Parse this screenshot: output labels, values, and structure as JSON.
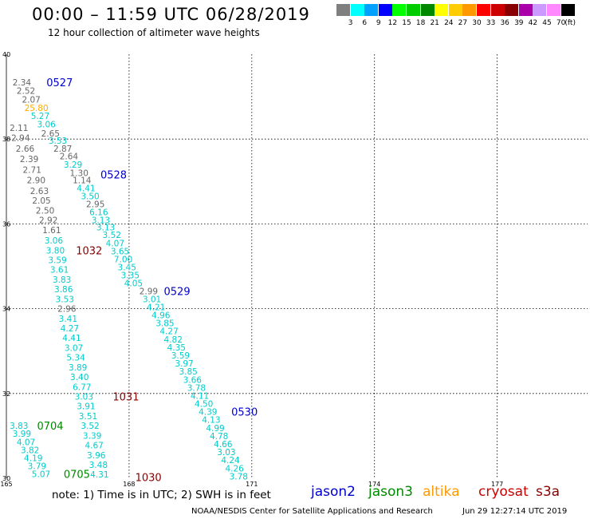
{
  "header": {
    "title": "00:00 – 11:59 UTC 06/28/2019",
    "subtitle": "12 hour collection of altimeter wave heights"
  },
  "color_scale": {
    "unit": "(ft)",
    "bins": [
      {
        "label": "3",
        "color": "#7f7f7f"
      },
      {
        "label": "6",
        "color": "#00ffff"
      },
      {
        "label": "9",
        "color": "#00a0ff"
      },
      {
        "label": "12",
        "color": "#0000ff"
      },
      {
        "label": "15",
        "color": "#00ff00"
      },
      {
        "label": "18",
        "color": "#00cc00"
      },
      {
        "label": "21",
        "color": "#008800"
      },
      {
        "label": "24",
        "color": "#ffff00"
      },
      {
        "label": "27",
        "color": "#ffcc00"
      },
      {
        "label": "30",
        "color": "#ff9900"
      },
      {
        "label": "33",
        "color": "#ff0000"
      },
      {
        "label": "36",
        "color": "#cc0000"
      },
      {
        "label": "39",
        "color": "#880000"
      },
      {
        "label": "42",
        "color": "#aa00aa"
      },
      {
        "label": "45",
        "color": "#cc99ff"
      },
      {
        "label": "70",
        "color": "#ff88ff"
      },
      {
        "label": "",
        "color": "#000000"
      }
    ]
  },
  "map": {
    "lat_ticks": [
      "40",
      "38",
      "36",
      "34",
      "32",
      "30"
    ],
    "lon_ticks": [
      "165",
      "168",
      "171",
      "174",
      "177"
    ],
    "colors": {
      "gray": "#666666",
      "cyan": "#00cccc",
      "orange": "#ffaa00",
      "blue": "#0000cc",
      "green": "#008800",
      "darkred": "#880000"
    },
    "wave_labels": [
      {
        "v": "2.34",
        "c": "gray",
        "lat": 39.34,
        "lon": 165.15
      },
      {
        "v": "2.52",
        "c": "gray",
        "lat": 39.14,
        "lon": 165.25
      },
      {
        "v": "2.07",
        "c": "gray",
        "lat": 38.94,
        "lon": 165.38
      },
      {
        "v": "25.80",
        "c": "orange",
        "lat": 38.74,
        "lon": 165.44
      },
      {
        "v": "5.27",
        "c": "cyan",
        "lat": 38.55,
        "lon": 165.6
      },
      {
        "v": "3.06",
        "c": "cyan",
        "lat": 38.35,
        "lon": 165.75
      },
      {
        "v": "2.65",
        "c": "gray",
        "lat": 38.14,
        "lon": 165.85
      },
      {
        "v": "2.11",
        "c": "gray",
        "lat": 38.27,
        "lon": 165.08
      },
      {
        "v": "2.94",
        "c": "gray",
        "lat": 38.03,
        "lon": 165.12
      },
      {
        "v": "3.53",
        "c": "cyan",
        "lat": 37.97,
        "lon": 166.03
      },
      {
        "v": "2.66",
        "c": "gray",
        "lat": 37.78,
        "lon": 165.23
      },
      {
        "v": "2.87",
        "c": "gray",
        "lat": 37.78,
        "lon": 166.15
      },
      {
        "v": "2.39",
        "c": "gray",
        "lat": 37.53,
        "lon": 165.33
      },
      {
        "v": "2.64",
        "c": "gray",
        "lat": 37.6,
        "lon": 166.3
      },
      {
        "v": "2.71",
        "c": "gray",
        "lat": 37.28,
        "lon": 165.4
      },
      {
        "v": "3.29",
        "c": "cyan",
        "lat": 37.4,
        "lon": 166.4
      },
      {
        "v": "1.30",
        "c": "gray",
        "lat": 37.2,
        "lon": 166.55
      },
      {
        "v": "2.90",
        "c": "gray",
        "lat": 37.03,
        "lon": 165.5
      },
      {
        "v": "1.14",
        "c": "gray",
        "lat": 37.03,
        "lon": 166.62
      },
      {
        "v": "2.63",
        "c": "gray",
        "lat": 36.78,
        "lon": 165.58
      },
      {
        "v": "4.41",
        "c": "cyan",
        "lat": 36.85,
        "lon": 166.72
      },
      {
        "v": "2.05",
        "c": "gray",
        "lat": 36.55,
        "lon": 165.63
      },
      {
        "v": "3.50",
        "c": "cyan",
        "lat": 36.66,
        "lon": 166.82
      },
      {
        "v": "2.50",
        "c": "gray",
        "lat": 36.32,
        "lon": 165.72
      },
      {
        "v": "2.95",
        "c": "gray",
        "lat": 36.47,
        "lon": 166.95
      },
      {
        "v": "6.16",
        "c": "cyan",
        "lat": 36.28,
        "lon": 167.03
      },
      {
        "v": "2.92",
        "c": "gray",
        "lat": 36.09,
        "lon": 165.8
      },
      {
        "v": "3.13",
        "c": "cyan",
        "lat": 36.09,
        "lon": 167.08
      },
      {
        "v": "1.61",
        "c": "gray",
        "lat": 35.86,
        "lon": 165.88
      },
      {
        "v": "3.13",
        "c": "cyan",
        "lat": 35.92,
        "lon": 167.2
      },
      {
        "v": "3.52",
        "c": "cyan",
        "lat": 35.74,
        "lon": 167.35
      },
      {
        "v": "3.06",
        "c": "cyan",
        "lat": 35.61,
        "lon": 165.93
      },
      {
        "v": "4.07",
        "c": "cyan",
        "lat": 35.55,
        "lon": 167.43
      },
      {
        "v": "3.80",
        "c": "cyan",
        "lat": 35.38,
        "lon": 165.97
      },
      {
        "v": "3.65",
        "c": "cyan",
        "lat": 35.36,
        "lon": 167.55
      },
      {
        "v": "3.59",
        "c": "cyan",
        "lat": 35.15,
        "lon": 166.02
      },
      {
        "v": "7.00",
        "c": "cyan",
        "lat": 35.17,
        "lon": 167.63
      },
      {
        "v": "3.45",
        "c": "cyan",
        "lat": 34.98,
        "lon": 167.72
      },
      {
        "v": "3.61",
        "c": "cyan",
        "lat": 34.92,
        "lon": 166.07
      },
      {
        "v": "3.35",
        "c": "cyan",
        "lat": 34.79,
        "lon": 167.8
      },
      {
        "v": "3.83",
        "c": "cyan",
        "lat": 34.69,
        "lon": 166.13
      },
      {
        "v": "4.05",
        "c": "cyan",
        "lat": 34.6,
        "lon": 167.88
      },
      {
        "v": "3.86",
        "c": "cyan",
        "lat": 34.46,
        "lon": 166.17
      },
      {
        "v": "2.99",
        "c": "gray",
        "lat": 34.42,
        "lon": 168.25
      },
      {
        "v": "3.53",
        "c": "cyan",
        "lat": 34.23,
        "lon": 166.2
      },
      {
        "v": "3.01",
        "c": "cyan",
        "lat": 34.23,
        "lon": 168.33
      },
      {
        "v": "2.96",
        "c": "gray",
        "lat": 34.0,
        "lon": 166.25
      },
      {
        "v": "4.21",
        "c": "cyan",
        "lat": 34.04,
        "lon": 168.43
      },
      {
        "v": "4.96",
        "c": "cyan",
        "lat": 33.85,
        "lon": 168.55
      },
      {
        "v": "3.41",
        "c": "cyan",
        "lat": 33.77,
        "lon": 166.28
      },
      {
        "v": "3.85",
        "c": "cyan",
        "lat": 33.66,
        "lon": 168.65
      },
      {
        "v": "4.27",
        "c": "cyan",
        "lat": 33.54,
        "lon": 166.32
      },
      {
        "v": "4.27",
        "c": "cyan",
        "lat": 33.47,
        "lon": 168.75
      },
      {
        "v": "4.41",
        "c": "cyan",
        "lat": 33.31,
        "lon": 166.37
      },
      {
        "v": "4.82",
        "c": "cyan",
        "lat": 33.28,
        "lon": 168.85
      },
      {
        "v": "4.35",
        "c": "cyan",
        "lat": 33.09,
        "lon": 168.93
      },
      {
        "v": "3.07",
        "c": "cyan",
        "lat": 33.08,
        "lon": 166.42
      },
      {
        "v": "3.59",
        "c": "cyan",
        "lat": 32.9,
        "lon": 169.03
      },
      {
        "v": "5.34",
        "c": "cyan",
        "lat": 32.85,
        "lon": 166.47
      },
      {
        "v": "3.97",
        "c": "cyan",
        "lat": 32.71,
        "lon": 169.12
      },
      {
        "v": "3.89",
        "c": "cyan",
        "lat": 32.62,
        "lon": 166.52
      },
      {
        "v": "3.85",
        "c": "cyan",
        "lat": 32.52,
        "lon": 169.22
      },
      {
        "v": "3.40",
        "c": "cyan",
        "lat": 32.39,
        "lon": 166.56
      },
      {
        "v": "3.66",
        "c": "cyan",
        "lat": 32.33,
        "lon": 169.32
      },
      {
        "v": "6.77",
        "c": "cyan",
        "lat": 32.16,
        "lon": 166.62
      },
      {
        "v": "3.78",
        "c": "cyan",
        "lat": 32.14,
        "lon": 169.42
      },
      {
        "v": "4.11",
        "c": "cyan",
        "lat": 31.95,
        "lon": 169.5
      },
      {
        "v": "3.03",
        "c": "cyan",
        "lat": 31.93,
        "lon": 166.67
      },
      {
        "v": "4.50",
        "c": "cyan",
        "lat": 31.76,
        "lon": 169.6
      },
      {
        "v": "3.91",
        "c": "cyan",
        "lat": 31.7,
        "lon": 166.72
      },
      {
        "v": "4.39",
        "c": "cyan",
        "lat": 31.57,
        "lon": 169.7
      },
      {
        "v": "3.51",
        "c": "cyan",
        "lat": 31.47,
        "lon": 166.77
      },
      {
        "v": "4.13",
        "c": "cyan",
        "lat": 31.38,
        "lon": 169.78
      },
      {
        "v": "3.83",
        "c": "cyan",
        "lat": 31.24,
        "lon": 165.08
      },
      {
        "v": "3.52",
        "c": "cyan",
        "lat": 31.24,
        "lon": 166.82
      },
      {
        "v": "4.99",
        "c": "cyan",
        "lat": 31.19,
        "lon": 169.88
      },
      {
        "v": "3.99",
        "c": "cyan",
        "lat": 31.05,
        "lon": 165.15
      },
      {
        "v": "3.39",
        "c": "cyan",
        "lat": 31.01,
        "lon": 166.87
      },
      {
        "v": "4.78",
        "c": "cyan",
        "lat": 31.0,
        "lon": 169.97
      },
      {
        "v": "4.07",
        "c": "cyan",
        "lat": 30.86,
        "lon": 165.25
      },
      {
        "v": "4.66",
        "c": "cyan",
        "lat": 30.81,
        "lon": 170.07
      },
      {
        "v": "4.67",
        "c": "cyan",
        "lat": 30.78,
        "lon": 166.92
      },
      {
        "v": "3.82",
        "c": "cyan",
        "lat": 30.67,
        "lon": 165.35
      },
      {
        "v": "3.03",
        "c": "cyan",
        "lat": 30.62,
        "lon": 170.15
      },
      {
        "v": "3.96",
        "c": "cyan",
        "lat": 30.55,
        "lon": 166.97
      },
      {
        "v": "4.19",
        "c": "cyan",
        "lat": 30.48,
        "lon": 165.43
      },
      {
        "v": "4.24",
        "c": "cyan",
        "lat": 30.43,
        "lon": 170.25
      },
      {
        "v": "3.79",
        "c": "cyan",
        "lat": 30.29,
        "lon": 165.52
      },
      {
        "v": "3.48",
        "c": "cyan",
        "lat": 30.32,
        "lon": 167.02
      },
      {
        "v": "4.26",
        "c": "cyan",
        "lat": 30.24,
        "lon": 170.35
      },
      {
        "v": "5.07",
        "c": "cyan",
        "lat": 30.1,
        "lon": 165.62
      },
      {
        "v": "4.31",
        "c": "cyan",
        "lat": 30.09,
        "lon": 167.05
      },
      {
        "v": "3.78",
        "c": "cyan",
        "lat": 30.05,
        "lon": 170.45
      }
    ],
    "pass_labels": [
      {
        "t": "0527",
        "c": "blue",
        "lat": 39.34,
        "lon": 165.98
      },
      {
        "t": "0528",
        "c": "blue",
        "lat": 37.17,
        "lon": 167.3
      },
      {
        "t": "0529",
        "c": "blue",
        "lat": 34.42,
        "lon": 168.85
      },
      {
        "t": "0530",
        "c": "blue",
        "lat": 31.57,
        "lon": 170.5
      },
      {
        "t": "1032",
        "c": "darkred",
        "lat": 35.38,
        "lon": 166.7
      },
      {
        "t": "1031",
        "c": "darkred",
        "lat": 31.93,
        "lon": 167.6
      },
      {
        "t": "1030",
        "c": "darkred",
        "lat": 30.03,
        "lon": 168.15
      },
      {
        "t": "0704",
        "c": "green",
        "lat": 31.24,
        "lon": 165.75
      },
      {
        "t": "0705",
        "c": "green",
        "lat": 30.1,
        "lon": 166.4
      }
    ]
  },
  "footer": {
    "note": "note:  1) Time is in UTC;  2) SWH is in feet",
    "satellites": [
      {
        "name": "jason2",
        "color": "#0000cc"
      },
      {
        "name": "jason3",
        "color": "#008800"
      },
      {
        "name": "altika",
        "color": "#ff9900"
      },
      {
        "name": "cryosat",
        "color": "#cc0000"
      },
      {
        "name": "s3a",
        "color": "#880000"
      }
    ],
    "credit": "NOAA/NESDIS Center for Satellite Applications and Research",
    "timestamp": "Jun 29 12:27:14 UTC 2019"
  }
}
